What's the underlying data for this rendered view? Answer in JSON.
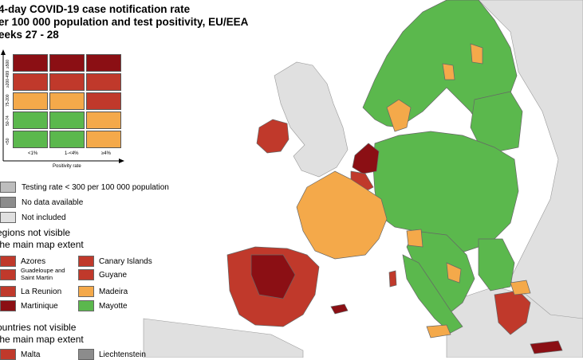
{
  "title": {
    "line1": "4-day COVID-19 case notification rate",
    "line2": "er 100 000 population and test positivity, EU/EEA",
    "line3": "eeks 27 - 28"
  },
  "colors": {
    "dark_red": "#8b0f14",
    "red": "#c0392b",
    "orange": "#f4a94a",
    "green": "#5bb84d",
    "grey_testing": "#bdbdbd",
    "grey_nodata": "#8c8c8c",
    "grey_not_included": "#e0e0e0",
    "sea": "#ffffff",
    "border": "#666666"
  },
  "matrix": {
    "y_ticks": [
      "≥500",
      "≥200-499",
      "75-200",
      "50-74",
      "<50"
    ],
    "x_ticks": [
      "<1%",
      "1-<4%",
      "≥4%"
    ],
    "x_label": "Positivity rate",
    "rows": [
      [
        "dark_red",
        "dark_red",
        "dark_red"
      ],
      [
        "red",
        "red",
        "red"
      ],
      [
        "orange",
        "orange",
        "red"
      ],
      [
        "green",
        "green",
        "orange"
      ],
      [
        "green",
        "green",
        "orange"
      ]
    ]
  },
  "legend": {
    "testing": "Testing rate < 300 per 100 000 population",
    "nodata": "No data available",
    "notincluded": "Not included"
  },
  "regions_header": {
    "line1": "egions not visible",
    "line2": " the main map extent"
  },
  "regions": [
    {
      "label": "Azores",
      "color": "red"
    },
    {
      "label": "Canary Islands",
      "color": "red"
    },
    {
      "label": "Guadeloupe and Saint Martin",
      "color": "red"
    },
    {
      "label": "Guyane",
      "color": "red"
    },
    {
      "label": "La Reunion",
      "color": "red"
    },
    {
      "label": "Madeira",
      "color": "orange"
    },
    {
      "label": "Martinique",
      "color": "dark_red"
    },
    {
      "label": "Mayotte",
      "color": "green"
    }
  ],
  "countries_header": {
    "line1": "ountries not visible",
    "line2": " the main map extent"
  },
  "countries": [
    {
      "label": "Malta",
      "color": "red"
    },
    {
      "label": "Liechtenstein",
      "color": "grey_nodata"
    }
  ],
  "map_regions": [
    {
      "name": "iceland-ireland-uk",
      "color": "grey_not_included"
    },
    {
      "name": "ireland",
      "color": "red"
    },
    {
      "name": "spain-portugal",
      "color": "red"
    },
    {
      "name": "netherlands",
      "color": "dark_red"
    },
    {
      "name": "france",
      "color": "orange"
    },
    {
      "name": "central-europe",
      "color": "green"
    },
    {
      "name": "scandinavia",
      "color": "green"
    },
    {
      "name": "greece",
      "color": "red"
    },
    {
      "name": "cyprus",
      "color": "dark_red"
    }
  ]
}
